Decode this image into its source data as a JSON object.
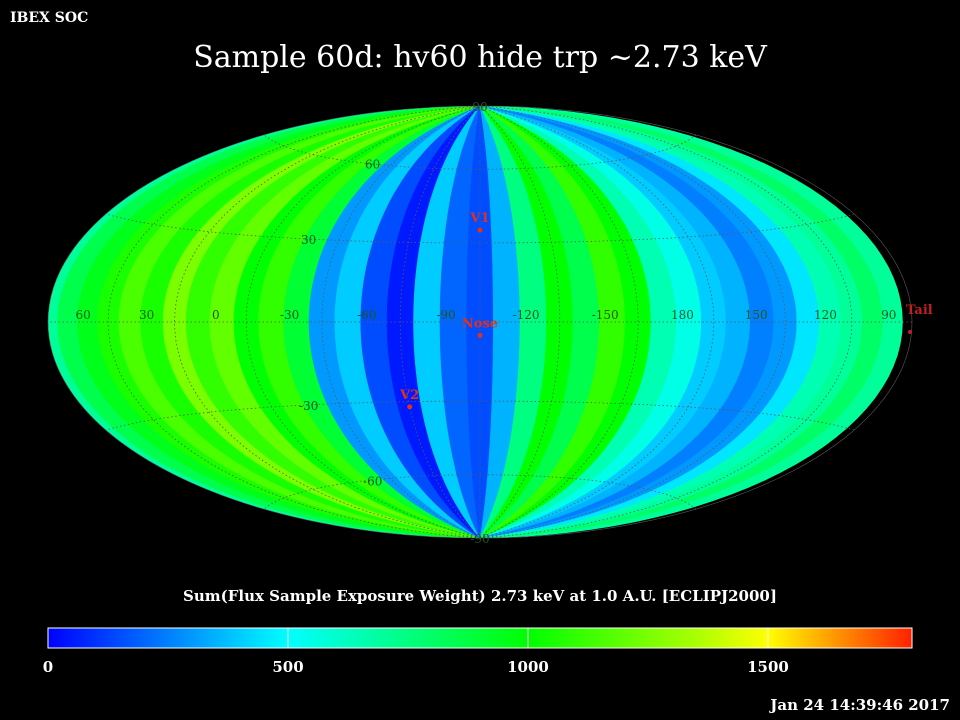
{
  "header": {
    "corner_label": "IBEX SOC",
    "title": "Sample 60d: hv60 hide trp ~2.73 keV"
  },
  "footer": {
    "timestamp": "Jan 24 14:39:46 2017"
  },
  "colors": {
    "background": "#000000",
    "grid": "#5a5a5a",
    "latitude_label": "#1a5a1a",
    "longitude_label": "#1a5a1a",
    "marker": "#e03020",
    "tail_marker": "#c02020"
  },
  "chart_data": {
    "type": "heatmap",
    "projection": "Mollweide (Hammer-Aitoff style all-sky map)",
    "coordinate_frame": "ECLIPJ2000",
    "colorbar_title": "Sum(Flux Sample Exposure Weight)  2.73 keV at 1.0 A.U. [ECLIPJ2000]",
    "colorbar": {
      "min": 0,
      "max": 1800,
      "ticks": [
        0,
        500,
        1000,
        1500
      ],
      "tick_labels": [
        "0",
        "500",
        "1000",
        "1500"
      ],
      "colormap_stops": [
        {
          "value": 0,
          "color": "#0000ff"
        },
        {
          "value": 500,
          "color": "#00ffff"
        },
        {
          "value": 1000,
          "color": "#00ff00"
        },
        {
          "value": 1350,
          "color": "#aaff00"
        },
        {
          "value": 1500,
          "color": "#ffff00"
        },
        {
          "value": 1800,
          "color": "#ff2000"
        }
      ]
    },
    "longitude_labels": [
      {
        "lon": 60,
        "text": "60"
      },
      {
        "lon": 30,
        "text": "30"
      },
      {
        "lon": 0,
        "text": "0"
      },
      {
        "lon": -30,
        "text": "-30"
      },
      {
        "lon": -60,
        "text": "-60"
      },
      {
        "lon": -90,
        "text": "-90"
      },
      {
        "lon": -120,
        "text": "-120"
      },
      {
        "lon": -150,
        "text": "-150"
      },
      {
        "lon": 180,
        "text": "180"
      },
      {
        "lon": 150,
        "text": "150"
      },
      {
        "lon": 120,
        "text": "120"
      },
      {
        "lon": 90,
        "text": "90"
      }
    ],
    "latitude_labels": [
      {
        "lat": 90,
        "text": "90"
      },
      {
        "lat": 60,
        "text": "60"
      },
      {
        "lat": 30,
        "text": "30"
      },
      {
        "lat": -30,
        "text": "-30"
      },
      {
        "lat": -60,
        "text": "-60"
      },
      {
        "lat": -90,
        "text": "-90"
      }
    ],
    "center_longitude": -105,
    "markers": [
      {
        "name": "V1",
        "lon": -105,
        "lat": 35
      },
      {
        "name": "Nose",
        "lon": -105,
        "lat": -5
      },
      {
        "name": "V2",
        "lon": -75,
        "lat": -32
      },
      {
        "name": "Tail",
        "lon": 75,
        "lat": 0
      }
    ],
    "flux_by_longitude_band": [
      {
        "lon": 75,
        "value": 700
      },
      {
        "lon": 65,
        "value": 850
      },
      {
        "lon": 55,
        "value": 950
      },
      {
        "lon": 45,
        "value": 1050
      },
      {
        "lon": 35,
        "value": 1150
      },
      {
        "lon": 25,
        "value": 1050
      },
      {
        "lon": 15,
        "value": 1250
      },
      {
        "lon": 5,
        "value": 1100
      },
      {
        "lon": -5,
        "value": 1200
      },
      {
        "lon": -15,
        "value": 1000
      },
      {
        "lon": -25,
        "value": 1100
      },
      {
        "lon": -35,
        "value": 900
      },
      {
        "lon": -45,
        "value": 300
      },
      {
        "lon": -55,
        "value": 400
      },
      {
        "lon": -65,
        "value": 150
      },
      {
        "lon": -75,
        "value": 50
      },
      {
        "lon": -85,
        "value": 400
      },
      {
        "lon": -95,
        "value": 200
      },
      {
        "lon": -105,
        "value": 150
      },
      {
        "lon": -115,
        "value": 350
      },
      {
        "lon": -125,
        "value": 750
      },
      {
        "lon": -135,
        "value": 1000
      },
      {
        "lon": -145,
        "value": 850
      },
      {
        "lon": -155,
        "value": 1100
      },
      {
        "lon": -165,
        "value": 1000
      },
      {
        "lon": -175,
        "value": 650
      },
      {
        "lon": 175,
        "value": 550
      },
      {
        "lon": 165,
        "value": 400
      },
      {
        "lon": 155,
        "value": 350
      },
      {
        "lon": 145,
        "value": 250
      },
      {
        "lon": 135,
        "value": 300
      },
      {
        "lon": 125,
        "value": 450
      },
      {
        "lon": 115,
        "value": 650
      },
      {
        "lon": 105,
        "value": 700
      },
      {
        "lon": 95,
        "value": 800
      },
      {
        "lon": 85,
        "value": 700
      }
    ]
  }
}
